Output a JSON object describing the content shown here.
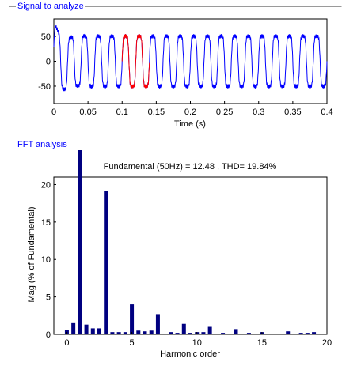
{
  "panels": {
    "signal": {
      "title": "Signal to analyze"
    },
    "fft": {
      "title": "FFT analysis"
    }
  },
  "chart_data": [
    {
      "type": "line",
      "xlabel": "Time (s)",
      "ylabel": "",
      "xlim": [
        0,
        0.4
      ],
      "ylim": [
        -85,
        85
      ],
      "xticks": [
        "0",
        "0.05",
        "0.1",
        "0.15",
        "0.2",
        "0.25",
        "0.3",
        "0.35",
        "0.4"
      ],
      "yticks": [
        "50",
        "0",
        "-50"
      ],
      "signal": {
        "frequency_hz": 50,
        "amplitude": 60,
        "harmonic3": 0.19,
        "harmonic5": 0.04
      },
      "highlight_window": [
        0.1,
        0.14
      ],
      "colors": {
        "signal": "#0000ff",
        "highlight": "#ff0000"
      }
    },
    {
      "type": "bar",
      "title": "Fundamental (50Hz) = 12.48 , THD= 19.84%",
      "xlabel": "Harmonic order",
      "ylabel": "Mag (% of Fundamental)",
      "xlim": [
        -1,
        20
      ],
      "ylim": [
        0,
        21
      ],
      "xticks": [
        "0",
        "5",
        "10",
        "15",
        "20"
      ],
      "yticks": [
        "0",
        "5",
        "10",
        "15",
        "20"
      ],
      "harmonic_order": [
        0,
        0.5,
        1,
        1.5,
        2,
        2.5,
        3,
        3.5,
        4,
        4.5,
        5,
        5.5,
        6,
        6.5,
        7,
        7.5,
        8,
        8.5,
        9,
        9.5,
        10,
        10.5,
        11,
        11.5,
        12,
        12.5,
        13,
        13.5,
        14,
        14.5,
        15,
        15.5,
        16,
        16.5,
        17,
        17.5,
        18,
        18.5,
        19,
        19.5,
        20
      ],
      "magnitude": [
        0.6,
        1.6,
        100,
        1.3,
        0.8,
        0.8,
        19.2,
        0.3,
        0.3,
        0.3,
        4.0,
        0.5,
        0.4,
        0.5,
        2.7,
        0.1,
        0.3,
        0.2,
        1.4,
        0.2,
        0.3,
        0.3,
        1.0,
        0.1,
        0.2,
        0.1,
        0.7,
        0.1,
        0.2,
        0.1,
        0.3,
        0.1,
        0.1,
        0.1,
        0.4,
        0.1,
        0.2,
        0.2,
        0.3,
        0.1,
        0.0
      ],
      "colors": {
        "bar": "#000080"
      }
    }
  ]
}
